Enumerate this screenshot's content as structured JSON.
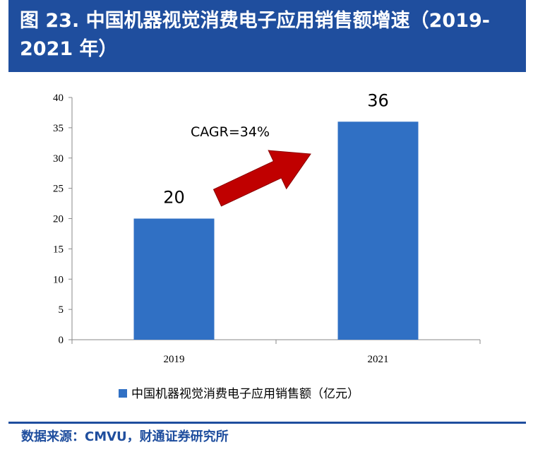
{
  "title": "图 23. 中国机器视觉消费电子应用销售额增速（2019-2021 年）",
  "source": "数据来源：CMVU，财通证券研究所",
  "chart_data": {
    "type": "bar",
    "categories": [
      "2019",
      "2021"
    ],
    "series": [
      {
        "name": "中国机器视觉消费电子应用销售额（亿元）",
        "values": [
          20,
          36
        ],
        "color": "#3070c4"
      }
    ],
    "data_labels": [
      "20",
      "36"
    ],
    "ylim": [
      0,
      40
    ],
    "yticks": [
      0,
      5,
      10,
      15,
      20,
      25,
      30,
      35,
      40
    ],
    "annotation": "CAGR=34%",
    "arrow_color": "#c00000",
    "legend_position": "bottom"
  }
}
